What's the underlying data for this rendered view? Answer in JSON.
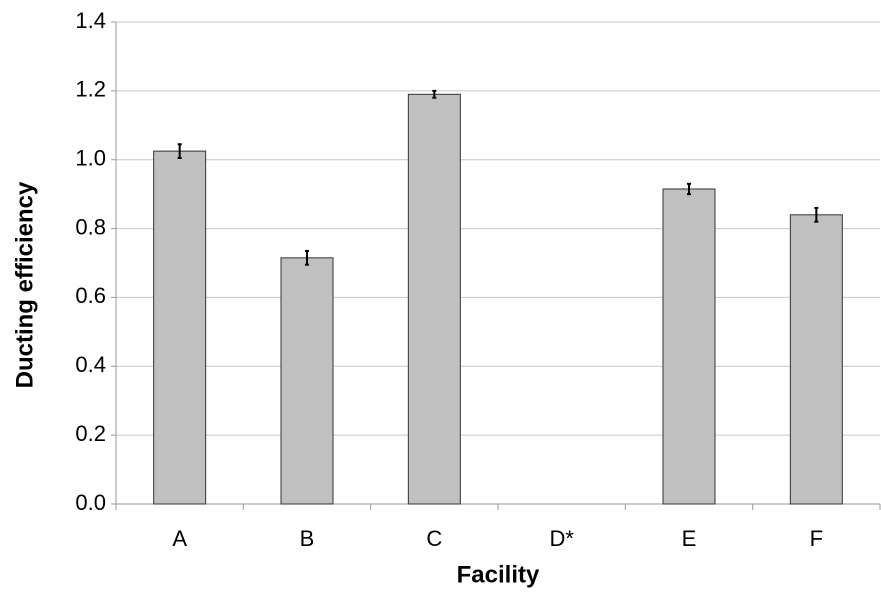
{
  "chart_data": {
    "type": "bar",
    "x_label": "Facility",
    "y_label": "Ducting efficiency",
    "categories": [
      "A",
      "B",
      "C",
      "D*",
      "E",
      "F"
    ],
    "values": [
      1.025,
      0.715,
      1.19,
      null,
      0.915,
      0.84
    ],
    "errors": [
      0.02,
      0.02,
      0.01,
      null,
      0.015,
      0.02
    ],
    "color": "#c0c0c0",
    "ylim": [
      0,
      1.4
    ],
    "yticks": [
      {
        "value": 0,
        "label": "0.0"
      },
      0.2,
      0.4,
      0.6,
      0.8,
      {
        "value": 1,
        "label": "1.0"
      },
      1.2,
      1.4
    ],
    "grid": true
  }
}
